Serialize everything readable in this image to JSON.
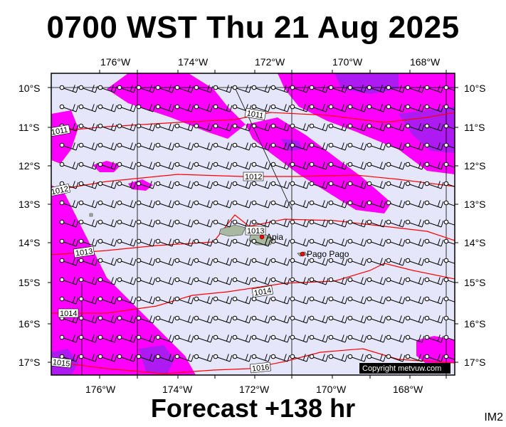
{
  "title": "0700 WST Thu 21 Aug 2025",
  "footer": "Forecast +138 hr",
  "product_code": "IM2",
  "copyright": "Copyright metvuw.com",
  "lon_labels": [
    "176°W",
    "174°W",
    "172°W",
    "170°W",
    "168°W"
  ],
  "lat_labels": [
    "10°S",
    "11°S",
    "12°S",
    "13°S",
    "14°S",
    "15°S",
    "16°S",
    "17°S"
  ],
  "isobars": [
    {
      "label": "1011",
      "value": 1011
    },
    {
      "label": "1011",
      "value": 1011
    },
    {
      "label": "1012",
      "value": 1012
    },
    {
      "label": "1012",
      "value": 1012
    },
    {
      "label": "1013",
      "value": 1013
    },
    {
      "label": "1013",
      "value": 1013
    },
    {
      "label": "1014",
      "value": 1014
    },
    {
      "label": "1014",
      "value": 1014
    },
    {
      "label": "1015",
      "value": 1015
    },
    {
      "label": "1016",
      "value": 1016
    }
  ],
  "places": [
    {
      "name": "Apia",
      "lon": -171.75,
      "lat": -13.83
    },
    {
      "name": "Pago Pago",
      "lon": -170.7,
      "lat": -14.28
    }
  ],
  "colors": {
    "background": "#e6e6fa",
    "wind_strong": "#ff00ff",
    "wind_very_strong": "#a020f0",
    "isobar": "#ff0000",
    "land": "#a9b8a0"
  }
}
